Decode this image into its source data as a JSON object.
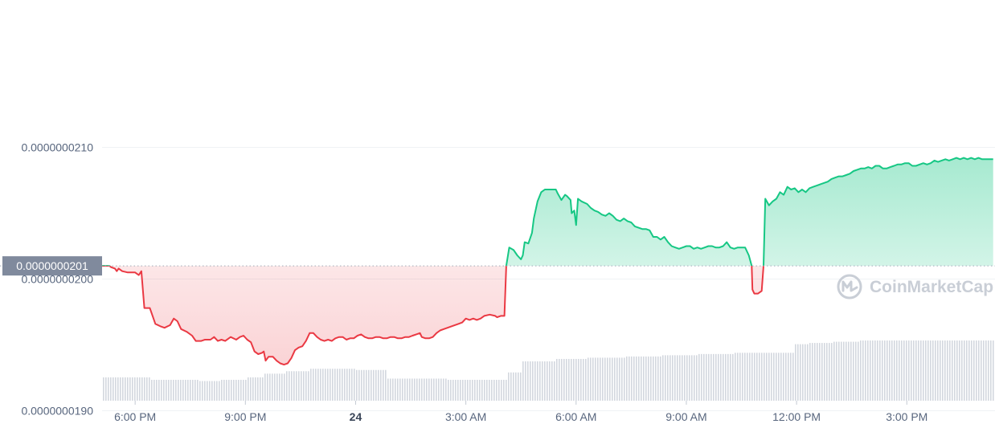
{
  "chart_data": {
    "type": "area",
    "reference_value": 2.01e-08,
    "reference_label": "0.0000000201",
    "y_ticks": [
      {
        "value": 2.1e-08,
        "label": "0.0000000210"
      },
      {
        "value": 2e-08,
        "label": "0.0000000200"
      },
      {
        "value": 1.9e-08,
        "label": "0.0000000190"
      }
    ],
    "x_ticks": [
      {
        "hour": 18,
        "label": "6:00 PM",
        "bold": false
      },
      {
        "hour": 21,
        "label": "9:00 PM",
        "bold": false
      },
      {
        "hour": 24,
        "label": "24",
        "bold": true
      },
      {
        "hour": 27,
        "label": "3:00 AM",
        "bold": false
      },
      {
        "hour": 30,
        "label": "6:00 AM",
        "bold": false
      },
      {
        "hour": 33,
        "label": "9:00 AM",
        "bold": false
      },
      {
        "hour": 36,
        "label": "12:00 PM",
        "bold": false
      },
      {
        "hour": 39,
        "label": "3:00 PM",
        "bold": false
      }
    ],
    "x_range_hours": [
      17.1,
      41.4
    ],
    "y_range": [
      1.8869e-08,
      2.2119e-08
    ],
    "price_points": [
      [
        17.1,
        2.01
      ],
      [
        17.3,
        2.01
      ],
      [
        17.35,
        2.009
      ],
      [
        17.45,
        2.008
      ],
      [
        17.5,
        2.006
      ],
      [
        17.55,
        2.008
      ],
      [
        17.65,
        2.006
      ],
      [
        17.8,
        2.005
      ],
      [
        18.0,
        2.005
      ],
      [
        18.1,
        2.003
      ],
      [
        18.17,
        2.006
      ],
      [
        18.25,
        1.978
      ],
      [
        18.4,
        1.978
      ],
      [
        18.55,
        1.966
      ],
      [
        18.7,
        1.964
      ],
      [
        18.8,
        1.963
      ],
      [
        18.95,
        1.965
      ],
      [
        19.05,
        1.97
      ],
      [
        19.15,
        1.968
      ],
      [
        19.25,
        1.962
      ],
      [
        19.4,
        1.96
      ],
      [
        19.55,
        1.957
      ],
      [
        19.65,
        1.953
      ],
      [
        19.8,
        1.953
      ],
      [
        19.9,
        1.954
      ],
      [
        20.05,
        1.954
      ],
      [
        20.15,
        1.956
      ],
      [
        20.25,
        1.953
      ],
      [
        20.35,
        1.954
      ],
      [
        20.45,
        1.953
      ],
      [
        20.6,
        1.956
      ],
      [
        20.75,
        1.954
      ],
      [
        20.85,
        1.956
      ],
      [
        20.95,
        1.957
      ],
      [
        21.05,
        1.954
      ],
      [
        21.15,
        1.952
      ],
      [
        21.25,
        1.945
      ],
      [
        21.35,
        1.943
      ],
      [
        21.45,
        1.944
      ],
      [
        21.5,
        1.945
      ],
      [
        21.55,
        1.938
      ],
      [
        21.63,
        1.941
      ],
      [
        21.75,
        1.941
      ],
      [
        21.85,
        1.938
      ],
      [
        21.95,
        1.936
      ],
      [
        22.05,
        1.935
      ],
      [
        22.15,
        1.936
      ],
      [
        22.25,
        1.94
      ],
      [
        22.35,
        1.946
      ],
      [
        22.45,
        1.948
      ],
      [
        22.55,
        1.949
      ],
      [
        22.65,
        1.953
      ],
      [
        22.75,
        1.959
      ],
      [
        22.85,
        1.959
      ],
      [
        22.95,
        1.956
      ],
      [
        23.05,
        1.954
      ],
      [
        23.15,
        1.953
      ],
      [
        23.25,
        1.954
      ],
      [
        23.35,
        1.953
      ],
      [
        23.45,
        1.955
      ],
      [
        23.55,
        1.956
      ],
      [
        23.65,
        1.956
      ],
      [
        23.75,
        1.954
      ],
      [
        23.85,
        1.955
      ],
      [
        23.95,
        1.955
      ],
      [
        24.05,
        1.957
      ],
      [
        24.15,
        1.958
      ],
      [
        24.25,
        1.956
      ],
      [
        24.35,
        1.955
      ],
      [
        24.45,
        1.955
      ],
      [
        24.55,
        1.956
      ],
      [
        24.65,
        1.956
      ],
      [
        24.75,
        1.955
      ],
      [
        24.85,
        1.955
      ],
      [
        24.95,
        1.956
      ],
      [
        25.05,
        1.956
      ],
      [
        25.15,
        1.955
      ],
      [
        25.25,
        1.955
      ],
      [
        25.35,
        1.956
      ],
      [
        25.45,
        1.956
      ],
      [
        25.55,
        1.957
      ],
      [
        25.65,
        1.958
      ],
      [
        25.75,
        1.959
      ],
      [
        25.8,
        1.956
      ],
      [
        25.9,
        1.955
      ],
      [
        26.0,
        1.955
      ],
      [
        26.1,
        1.956
      ],
      [
        26.2,
        1.959
      ],
      [
        26.3,
        1.961
      ],
      [
        26.4,
        1.962
      ],
      [
        26.5,
        1.963
      ],
      [
        26.6,
        1.964
      ],
      [
        26.7,
        1.965
      ],
      [
        26.8,
        1.966
      ],
      [
        26.9,
        1.967
      ],
      [
        27.0,
        1.97
      ],
      [
        27.1,
        1.969
      ],
      [
        27.2,
        1.97
      ],
      [
        27.3,
        1.969
      ],
      [
        27.4,
        1.97
      ],
      [
        27.5,
        1.972
      ],
      [
        27.65,
        1.973
      ],
      [
        27.8,
        1.972
      ],
      [
        27.85,
        1.971
      ],
      [
        27.95,
        1.972
      ],
      [
        28.05,
        1.972
      ],
      [
        28.1,
        2.01
      ],
      [
        28.18,
        2.024
      ],
      [
        28.3,
        2.022
      ],
      [
        28.4,
        2.018
      ],
      [
        28.5,
        2.015
      ],
      [
        28.55,
        2.018
      ],
      [
        28.6,
        2.028
      ],
      [
        28.7,
        2.027
      ],
      [
        28.8,
        2.035
      ],
      [
        28.85,
        2.046
      ],
      [
        28.95,
        2.059
      ],
      [
        29.05,
        2.066
      ],
      [
        29.15,
        2.068
      ],
      [
        29.25,
        2.068
      ],
      [
        29.35,
        2.068
      ],
      [
        29.45,
        2.068
      ],
      [
        29.5,
        2.065
      ],
      [
        29.6,
        2.06
      ],
      [
        29.7,
        2.064
      ],
      [
        29.75,
        2.063
      ],
      [
        29.85,
        2.06
      ],
      [
        29.88,
        2.05
      ],
      [
        29.95,
        2.052
      ],
      [
        30.0,
        2.041
      ],
      [
        30.05,
        2.061
      ],
      [
        30.15,
        2.059
      ],
      [
        30.3,
        2.057
      ],
      [
        30.4,
        2.054
      ],
      [
        30.5,
        2.052
      ],
      [
        30.6,
        2.051
      ],
      [
        30.7,
        2.049
      ],
      [
        30.8,
        2.048
      ],
      [
        30.9,
        2.05
      ],
      [
        31.0,
        2.048
      ],
      [
        31.1,
        2.045
      ],
      [
        31.2,
        2.044
      ],
      [
        31.3,
        2.046
      ],
      [
        31.4,
        2.044
      ],
      [
        31.5,
        2.043
      ],
      [
        31.6,
        2.04
      ],
      [
        31.7,
        2.039
      ],
      [
        31.8,
        2.038
      ],
      [
        31.9,
        2.038
      ],
      [
        32.0,
        2.037
      ],
      [
        32.1,
        2.032
      ],
      [
        32.2,
        2.032
      ],
      [
        32.3,
        2.03
      ],
      [
        32.4,
        2.032
      ],
      [
        32.5,
        2.028
      ],
      [
        32.6,
        2.025
      ],
      [
        32.7,
        2.024
      ],
      [
        32.8,
        2.023
      ],
      [
        32.9,
        2.024
      ],
      [
        33.0,
        2.025
      ],
      [
        33.1,
        2.025
      ],
      [
        33.2,
        2.023
      ],
      [
        33.3,
        2.024
      ],
      [
        33.4,
        2.023
      ],
      [
        33.5,
        2.024
      ],
      [
        33.6,
        2.025
      ],
      [
        33.7,
        2.025
      ],
      [
        33.8,
        2.024
      ],
      [
        33.9,
        2.024
      ],
      [
        34.0,
        2.025
      ],
      [
        34.1,
        2.028
      ],
      [
        34.2,
        2.024
      ],
      [
        34.3,
        2.023
      ],
      [
        34.4,
        2.024
      ],
      [
        34.5,
        2.024
      ],
      [
        34.6,
        2.024
      ],
      [
        34.7,
        2.018
      ],
      [
        34.78,
        2.01
      ],
      [
        34.8,
        1.992
      ],
      [
        34.85,
        1.989
      ],
      [
        34.95,
        1.989
      ],
      [
        35.05,
        1.991
      ],
      [
        35.1,
        2.01
      ],
      [
        35.15,
        2.061
      ],
      [
        35.25,
        2.056
      ],
      [
        35.35,
        2.059
      ],
      [
        35.45,
        2.061
      ],
      [
        35.55,
        2.066
      ],
      [
        35.65,
        2.064
      ],
      [
        35.75,
        2.07
      ],
      [
        35.85,
        2.068
      ],
      [
        35.95,
        2.069
      ],
      [
        36.05,
        2.066
      ],
      [
        36.15,
        2.068
      ],
      [
        36.25,
        2.066
      ],
      [
        36.35,
        2.069
      ],
      [
        36.45,
        2.07
      ],
      [
        36.55,
        2.071
      ],
      [
        36.65,
        2.072
      ],
      [
        36.75,
        2.073
      ],
      [
        36.85,
        2.074
      ],
      [
        36.95,
        2.076
      ],
      [
        37.05,
        2.077
      ],
      [
        37.15,
        2.078
      ],
      [
        37.25,
        2.078
      ],
      [
        37.35,
        2.079
      ],
      [
        37.45,
        2.08
      ],
      [
        37.55,
        2.082
      ],
      [
        37.65,
        2.083
      ],
      [
        37.75,
        2.084
      ],
      [
        37.85,
        2.084
      ],
      [
        37.95,
        2.085
      ],
      [
        38.05,
        2.084
      ],
      [
        38.15,
        2.086
      ],
      [
        38.25,
        2.086
      ],
      [
        38.35,
        2.084
      ],
      [
        38.45,
        2.084
      ],
      [
        38.55,
        2.085
      ],
      [
        38.65,
        2.086
      ],
      [
        38.75,
        2.087
      ],
      [
        38.85,
        2.087
      ],
      [
        38.95,
        2.088
      ],
      [
        39.05,
        2.088
      ],
      [
        39.15,
        2.086
      ],
      [
        39.25,
        2.086
      ],
      [
        39.35,
        2.087
      ],
      [
        39.45,
        2.088
      ],
      [
        39.55,
        2.087
      ],
      [
        39.65,
        2.088
      ],
      [
        39.75,
        2.09
      ],
      [
        39.85,
        2.089
      ],
      [
        39.95,
        2.09
      ],
      [
        40.05,
        2.091
      ],
      [
        40.15,
        2.09
      ],
      [
        40.25,
        2.091
      ],
      [
        40.35,
        2.092
      ],
      [
        40.45,
        2.091
      ],
      [
        40.55,
        2.092
      ],
      [
        40.65,
        2.091
      ],
      [
        40.75,
        2.092
      ],
      [
        40.85,
        2.091
      ],
      [
        40.95,
        2.092
      ],
      [
        41.05,
        2.091
      ],
      [
        41.15,
        2.091
      ],
      [
        41.25,
        2.091
      ],
      [
        41.35,
        2.091
      ]
    ],
    "volume_segments": [
      [
        17.1,
        0.19
      ],
      [
        18.4,
        0.17
      ],
      [
        19.7,
        0.16
      ],
      [
        20.3,
        0.17
      ],
      [
        21.0,
        0.19
      ],
      [
        21.5,
        0.22
      ],
      [
        22.1,
        0.24
      ],
      [
        22.7,
        0.26
      ],
      [
        23.4,
        0.26
      ],
      [
        24.0,
        0.25
      ],
      [
        24.8,
        0.18
      ],
      [
        25.7,
        0.18
      ],
      [
        26.5,
        0.17
      ],
      [
        27.2,
        0.17
      ],
      [
        27.9,
        0.17
      ],
      [
        28.1,
        0.23
      ],
      [
        28.5,
        0.32
      ],
      [
        29.4,
        0.34
      ],
      [
        30.3,
        0.35
      ],
      [
        31.3,
        0.36
      ],
      [
        32.3,
        0.37
      ],
      [
        33.3,
        0.38
      ],
      [
        34.3,
        0.39
      ],
      [
        35.1,
        0.39
      ],
      [
        35.9,
        0.46
      ],
      [
        36.3,
        0.47
      ],
      [
        37.0,
        0.48
      ],
      [
        37.7,
        0.49
      ],
      [
        41.4,
        0.49
      ]
    ],
    "volume_max_px": 60,
    "colors": {
      "up": "#16c784",
      "down": "#ea3943",
      "up_fill_top": "#b5eed7",
      "down_fill_bottom": "#fbd7d9",
      "grid": "#eff2f5",
      "volume": "#d3d7de",
      "ref_label_bg": "#808a9d",
      "ref_line": "#a3acb9",
      "watermark": "#c9ced6"
    }
  },
  "watermark": {
    "text": "CoinMarketCap",
    "icon": "coinmarketcap-logo-icon"
  }
}
